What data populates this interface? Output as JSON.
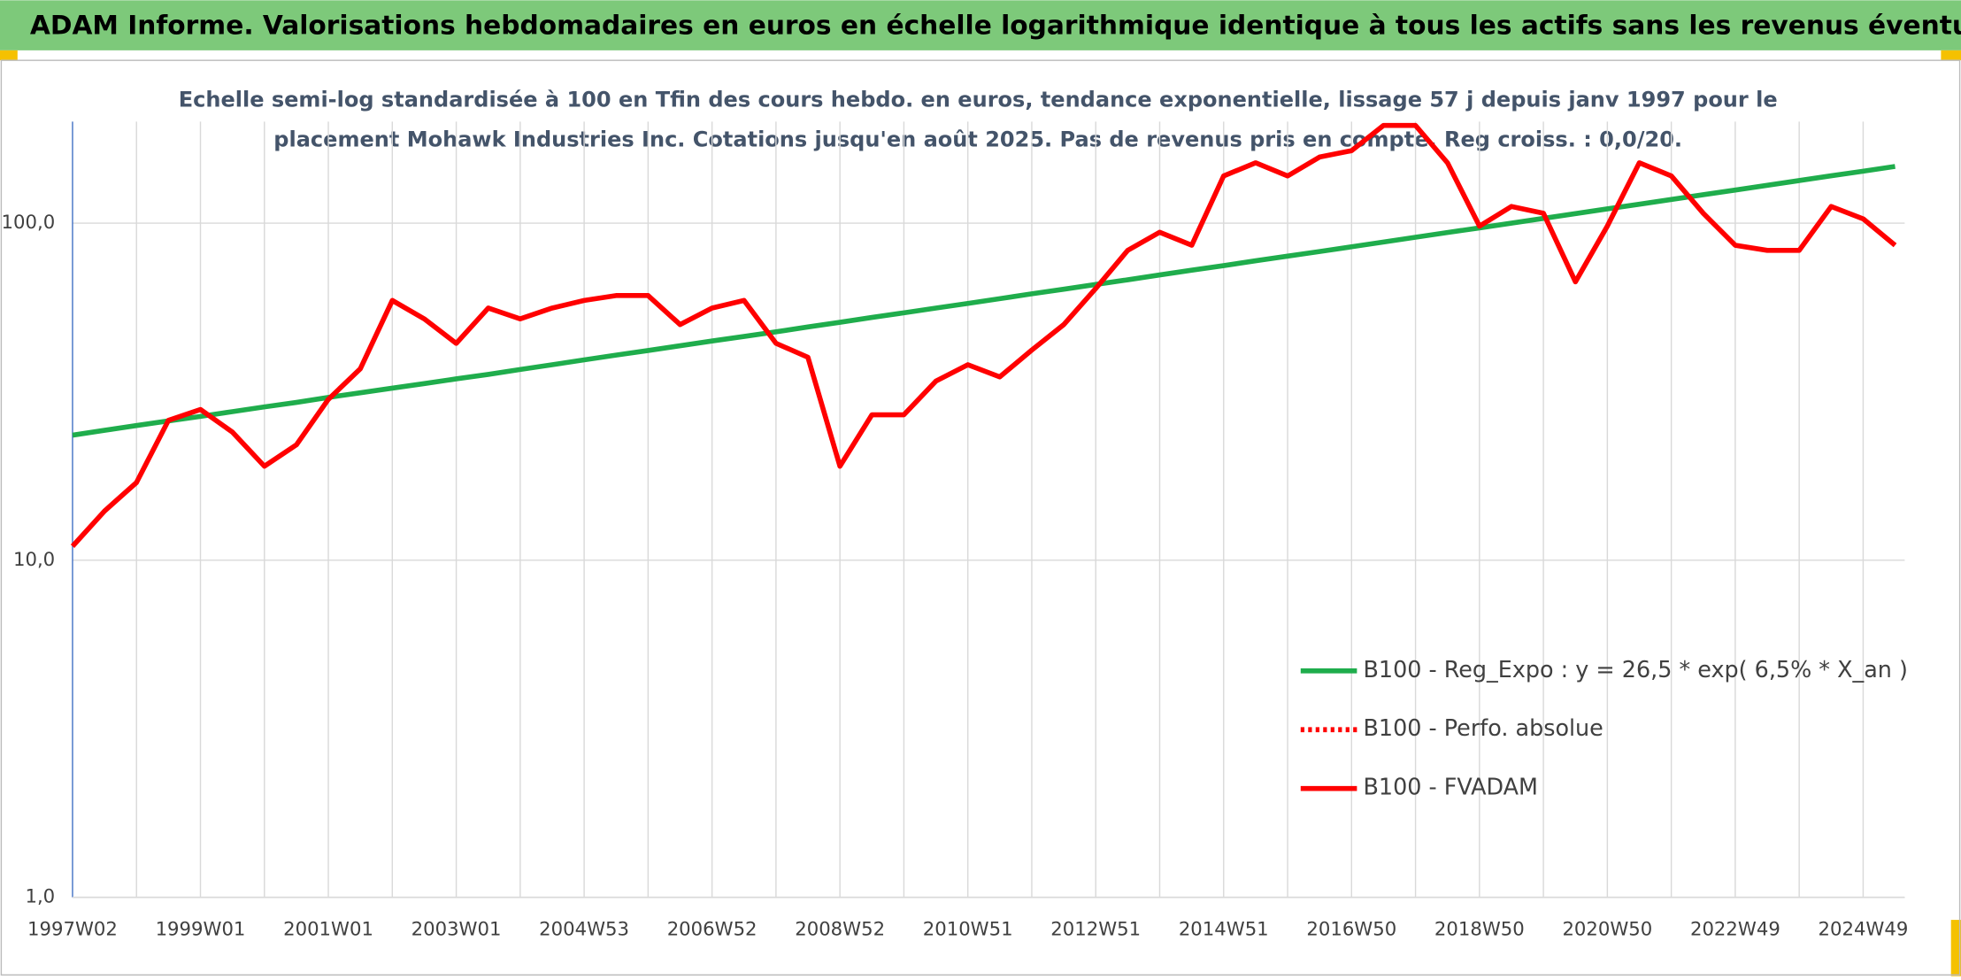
{
  "chart_data": {
    "type": "line",
    "title": "ADAM Informe. Valorisations hebdomadaires en euros en échelle logarithmique identique à tous les actifs sans les revenus éventuels",
    "subtitle": [
      "Echelle semi-log standardisée à 100 en Tfin des cours hebdo. en euros, tendance exponentielle, lissage 57 j depuis janv 1997 pour le",
      "placement Mohawk Industries Inc. Cotations jusqu'en août 2025. Pas de revenus pris en compte. Reg croiss. : 0,0/20."
    ],
    "categories": [
      "1997W02",
      null,
      null,
      null,
      "1999W01",
      null,
      null,
      null,
      "2001W01",
      null,
      null,
      null,
      "2003W01",
      null,
      null,
      null,
      "2004W53",
      null,
      null,
      null,
      "2006W52",
      null,
      null,
      null,
      "2008W52",
      null,
      null,
      null,
      "2010W51",
      null,
      null,
      null,
      "2012W51",
      null,
      null,
      null,
      "2014W51",
      null,
      null,
      null,
      "2016W50",
      null,
      null,
      null,
      "2018W50",
      null,
      null,
      null,
      "2020W50",
      null,
      null,
      null,
      "2022W49",
      null,
      null,
      null,
      "2024W49",
      null
    ],
    "series": [
      {
        "name": "B100 - Reg_Expo : y = 26,5 * exp( 6,5% *  X_an )",
        "color": "#1fad4c",
        "dash": "solid",
        "values": [
          23.5,
          24.3,
          25.1,
          25.9,
          26.7,
          27.6,
          28.5,
          29.4,
          30.4,
          31.4,
          32.4,
          33.4,
          34.5,
          35.6,
          36.8,
          38.0,
          39.3,
          40.6,
          41.9,
          43.3,
          44.7,
          46.1,
          47.6,
          49.2,
          50.8,
          52.5,
          54.2,
          56.0,
          57.8,
          59.7,
          61.7,
          63.7,
          65.8,
          67.9,
          70.2,
          72.5,
          74.8,
          77.3,
          79.8,
          82.4,
          85.1,
          87.9,
          90.8,
          93.8,
          96.8,
          100.0,
          103.3,
          106.7,
          110.2,
          113.8,
          117.5,
          121.4,
          125.3,
          129.5,
          133.7,
          138.1,
          142.6,
          147.3
        ]
      },
      {
        "name": "B100 - Perfo. absolue",
        "color": "#ff0000",
        "dash": "dotted",
        "values": [
          null,
          null,
          null,
          null,
          null,
          null,
          null,
          null,
          null,
          null,
          null,
          null,
          null,
          null,
          null,
          null,
          null,
          null,
          null,
          null,
          null,
          null,
          null,
          null,
          null,
          null,
          null,
          null,
          null,
          null,
          null,
          null,
          null,
          null,
          null,
          null,
          null,
          null,
          null,
          null,
          null,
          null,
          null,
          null,
          null,
          null,
          null,
          null,
          null,
          null,
          null,
          null,
          null,
          null,
          null,
          null,
          null,
          null
        ]
      },
      {
        "name": "B100 - FVADAM",
        "color": "#ff0000",
        "dash": "solid",
        "values": [
          11,
          14,
          17,
          26,
          28,
          24,
          19,
          22,
          30,
          37,
          59,
          52,
          44,
          56,
          52,
          56,
          59,
          61,
          61,
          50,
          56,
          59,
          44,
          40,
          19,
          27,
          27,
          34,
          38,
          35,
          42,
          50,
          64,
          83,
          94,
          86,
          138,
          151,
          138,
          157,
          164,
          195,
          195,
          151,
          98,
          112,
          107,
          67,
          98,
          151,
          138,
          107,
          86,
          83,
          83,
          112,
          103,
          86
        ]
      }
    ],
    "ylim": [
      1,
      200
    ],
    "yticks": [
      {
        "value": 1,
        "label": "1,0"
      },
      {
        "value": 10,
        "label": "10,0"
      },
      {
        "value": 100,
        "label": "100,0"
      }
    ],
    "log_scale": true,
    "grid": true
  }
}
